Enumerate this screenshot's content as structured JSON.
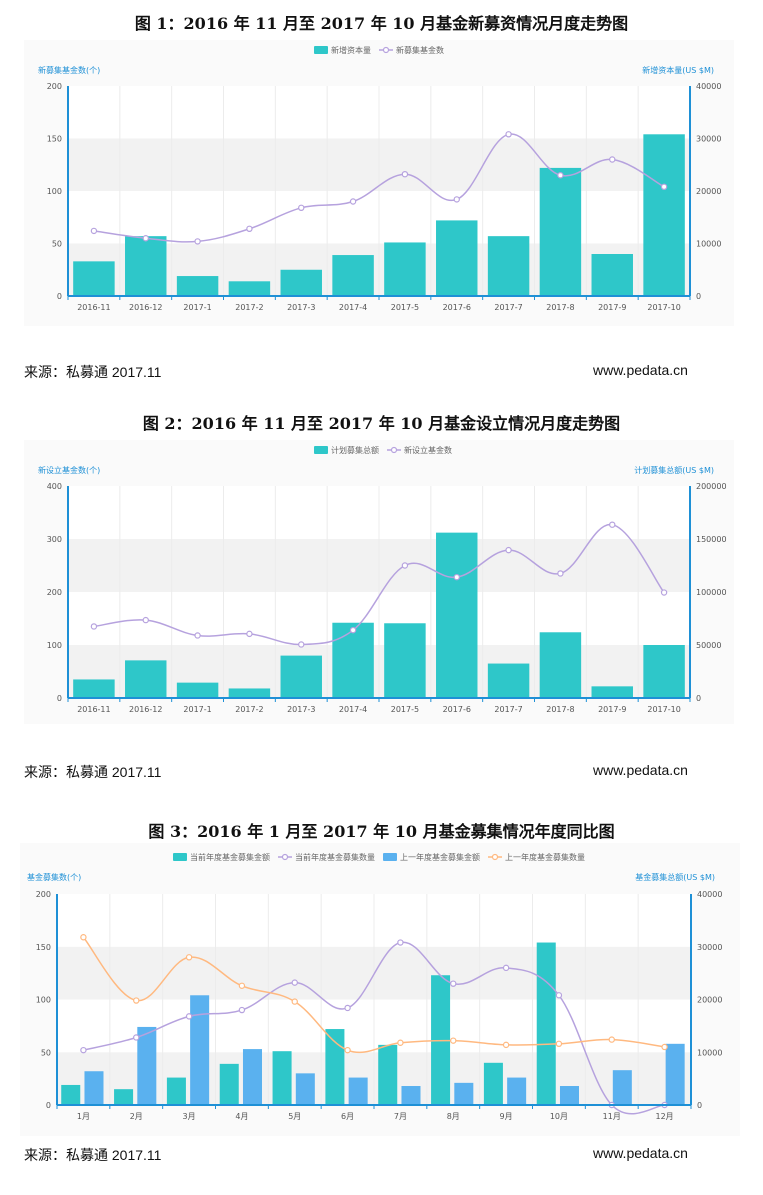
{
  "figures": [
    {
      "title": "图 1：2016 年 11 月至 2017 年 10 月基金新募资情况月度走势图",
      "left_axis_label": "新募集基金数(个)",
      "right_axis_label": "新增资本量(US $M)",
      "legend": [
        "新增资本量",
        "新募集基金数"
      ],
      "source": "来源：私募通  2017.11",
      "site": "www.pedata.cn"
    },
    {
      "title": "图 2：2016 年 11 月至 2017 年 10 月基金设立情况月度走势图",
      "left_axis_label": "新设立基金数(个)",
      "right_axis_label": "计划募集总额(US $M)",
      "legend": [
        "计划募集总额",
        "新设立基金数"
      ],
      "source": "来源：私募通  2017.11",
      "site": "www.pedata.cn"
    },
    {
      "title": "图 3：2016 年 1 月至 2017 年 10 月基金募集情况年度同比图",
      "left_axis_label": "基金募集数(个)",
      "right_axis_label": "基金募集总额(US $M)",
      "legend": [
        "当前年度基金募集金额",
        "当前年度基金募集数量",
        "上一年度基金募集金额",
        "上一年度基金募集数量"
      ],
      "source": "来源：私募通  2017.11",
      "site": "www.pedata.cn"
    }
  ],
  "colors": {
    "teal": "#2ec7c9",
    "blue": "#5ab1ef",
    "purple": "#b6a2de",
    "orange": "#ffb980",
    "axis": "#1e90d6",
    "band": "#f2f2f2"
  },
  "chart_data": [
    {
      "type": "bar",
      "title": "图 1：2016 年 11 月至 2017 年 10 月基金新募资情况月度走势图",
      "categories": [
        "2016-11",
        "2016-12",
        "2017-1",
        "2017-2",
        "2017-3",
        "2017-4",
        "2017-5",
        "2017-6",
        "2017-7",
        "2017-8",
        "2017-9",
        "2017-10"
      ],
      "series": [
        {
          "name": "新增资本量",
          "type": "bar",
          "axis": "right",
          "values": [
            6600,
            11400,
            3800,
            2800,
            5000,
            7800,
            10200,
            14400,
            11400,
            24400,
            8000,
            30800
          ]
        },
        {
          "name": "新募集基金数",
          "type": "line",
          "axis": "left",
          "values": [
            62,
            55,
            52,
            64,
            84,
            90,
            116,
            92,
            154,
            115,
            130,
            104
          ]
        }
      ],
      "ylabel": "新募集基金数(个)",
      "y2label": "新增资本量(US $M)",
      "ylim": [
        0,
        200
      ],
      "y2lim": [
        0,
        40000
      ],
      "yticks": [
        0,
        50,
        100,
        150,
        200
      ],
      "y2ticks": [
        0,
        10000,
        20000,
        30000,
        40000
      ],
      "legend_position": "top",
      "grid": true
    },
    {
      "type": "bar",
      "title": "图 2：2016 年 11 月至 2017 年 10 月基金设立情况月度走势图",
      "categories": [
        "2016-11",
        "2016-12",
        "2017-1",
        "2017-2",
        "2017-3",
        "2017-4",
        "2017-5",
        "2017-6",
        "2017-7",
        "2017-8",
        "2017-9",
        "2017-10"
      ],
      "series": [
        {
          "name": "计划募集总额",
          "type": "bar",
          "axis": "right",
          "values": [
            17500,
            35500,
            14500,
            9000,
            40000,
            71000,
            70500,
            156000,
            32500,
            62000,
            11000,
            50000
          ]
        },
        {
          "name": "新设立基金数",
          "type": "line",
          "axis": "left",
          "values": [
            135,
            147,
            118,
            121,
            101,
            128,
            250,
            228,
            279,
            235,
            327,
            199
          ]
        }
      ],
      "ylabel": "新设立基金数(个)",
      "y2label": "计划募集总额(US $M)",
      "ylim": [
        0,
        400
      ],
      "y2lim": [
        0,
        200000
      ],
      "yticks": [
        0,
        100,
        200,
        300,
        400
      ],
      "y2ticks": [
        0,
        50000,
        100000,
        150000,
        200000
      ],
      "legend_position": "top",
      "grid": true
    },
    {
      "type": "bar",
      "title": "图 3：2016 年 1 月至 2017 年 10 月基金募集情况年度同比图",
      "categories": [
        "1月",
        "2月",
        "3月",
        "4月",
        "5月",
        "6月",
        "7月",
        "8月",
        "9月",
        "10月",
        "11月",
        "12月"
      ],
      "series": [
        {
          "name": "当前年度基金募集金额",
          "type": "bar",
          "axis": "right",
          "values": [
            3800,
            3000,
            5200,
            7800,
            10200,
            14400,
            11400,
            24600,
            8000,
            30800,
            null,
            null
          ]
        },
        {
          "name": "当前年度基金募集数量",
          "type": "line",
          "axis": "left",
          "values": [
            52,
            64,
            84,
            90,
            116,
            92,
            154,
            115,
            130,
            104,
            0,
            0
          ]
        },
        {
          "name": "上一年度基金募集金额",
          "type": "bar",
          "axis": "right",
          "values": [
            6400,
            14800,
            20800,
            10600,
            6000,
            5200,
            3600,
            4200,
            5200,
            3600,
            6600,
            11600
          ]
        },
        {
          "name": "上一年度基金募集数量",
          "type": "line",
          "axis": "left",
          "values": [
            159,
            99,
            140,
            113,
            98,
            52,
            59,
            61,
            57,
            58,
            62,
            55
          ]
        }
      ],
      "ylabel": "基金募集数(个)",
      "y2label": "基金募集总额(US $M)",
      "ylim": [
        0,
        200
      ],
      "y2lim": [
        0,
        40000
      ],
      "yticks": [
        0,
        50,
        100,
        150,
        200
      ],
      "y2ticks": [
        0,
        10000,
        20000,
        30000,
        40000
      ],
      "legend_position": "top",
      "grid": true
    }
  ]
}
